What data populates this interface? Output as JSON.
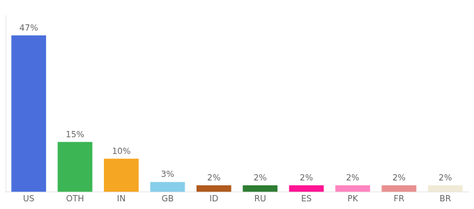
{
  "chart_data": {
    "type": "bar",
    "categories": [
      "US",
      "OTH",
      "IN",
      "GB",
      "ID",
      "RU",
      "ES",
      "PK",
      "FR",
      "BR"
    ],
    "values": [
      47,
      15,
      10,
      3,
      2,
      2,
      2,
      2,
      2,
      2
    ],
    "value_labels": [
      "47%",
      "15%",
      "10%",
      "3%",
      "2%",
      "2%",
      "2%",
      "2%",
      "2%",
      "2%"
    ],
    "colors": [
      "#4a6fdc",
      "#3cb554",
      "#f5a623",
      "#87ceeb",
      "#b05a1e",
      "#2e7d32",
      "#ff1493",
      "#ff85c0",
      "#e89090",
      "#f0ead6"
    ],
    "ylim": [
      0,
      53
    ],
    "yticks": [],
    "grid": false,
    "data_labels": true,
    "tick_labels": "x"
  }
}
